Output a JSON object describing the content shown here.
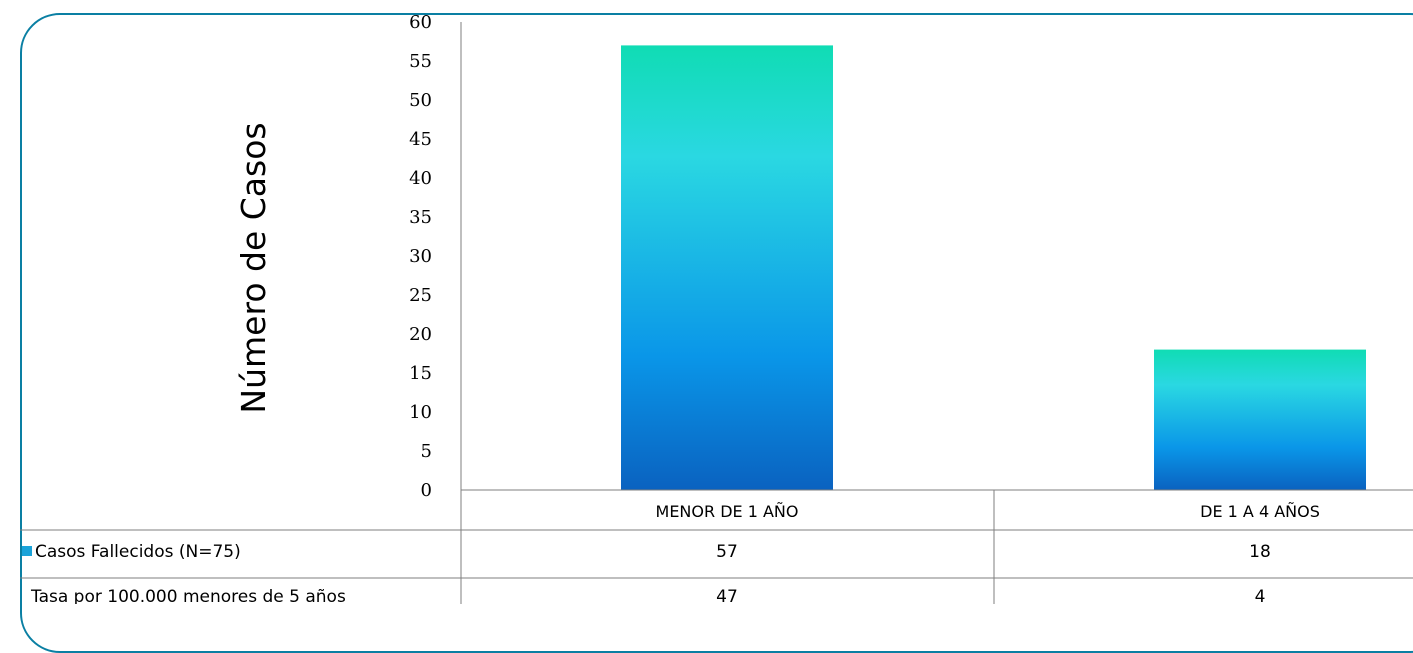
{
  "chart_data": {
    "type": "bar",
    "ylabel": "Número de Casos",
    "ylim": [
      0,
      60
    ],
    "yticks": [
      0,
      5,
      10,
      15,
      20,
      25,
      30,
      35,
      40,
      45,
      50,
      55,
      60
    ],
    "categories": [
      "MENOR DE 1 AÑO",
      "DE 1 A 4 AÑOS"
    ],
    "series": [
      {
        "name": "Casos Fallecidos (N=75)",
        "values": [
          57,
          18
        ],
        "color": "#1aa3d9"
      }
    ],
    "table_rows": [
      {
        "label": "Casos Fallecidos (N=75)",
        "values": [
          "57",
          "18"
        ]
      },
      {
        "label": "Tasa por 100.000 menores de 5 años",
        "values": [
          "47",
          "4"
        ]
      }
    ],
    "colors": {
      "bar_top": "#10dcb4",
      "bar_mid": "#2ad8e2",
      "bar_bottom": "#0a68c4",
      "frame": "#0a7fa3"
    }
  }
}
